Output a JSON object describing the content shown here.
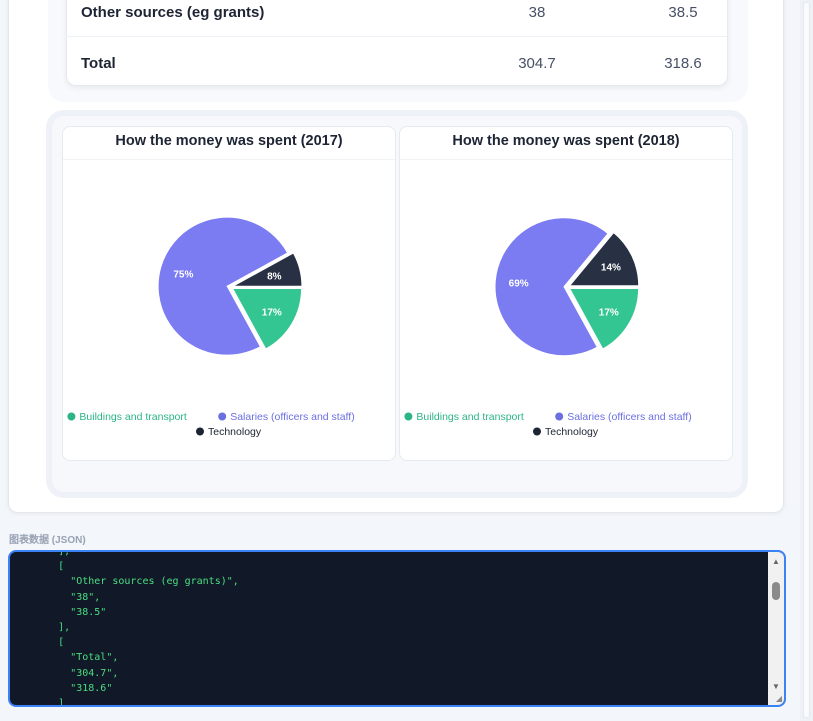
{
  "table": {
    "rows": [
      {
        "label": "Other sources (eg grants)",
        "v2017": "38",
        "v2018": "38.5"
      },
      {
        "label": "Total",
        "v2017": "304.7",
        "v2018": "318.6"
      }
    ]
  },
  "chart_data": [
    {
      "type": "pie",
      "title": "How the money was spent (2017)",
      "categories": [
        "Buildings and transport",
        "Salaries (officers and staff)",
        "Technology"
      ],
      "values": [
        17,
        75,
        8
      ],
      "labels": [
        "17%",
        "75%",
        "8%"
      ],
      "colors": [
        "#34c692",
        "#7b7bf2",
        "#283144"
      ],
      "legend_position": "bottom"
    },
    {
      "type": "pie",
      "title": "How the money was spent (2018)",
      "categories": [
        "Buildings and transport",
        "Salaries (officers and staff)",
        "Technology"
      ],
      "values": [
        17,
        69,
        14
      ],
      "labels": [
        "17%",
        "69%",
        "14%"
      ],
      "colors": [
        "#34c692",
        "#7b7bf2",
        "#283144"
      ],
      "legend_position": "bottom"
    }
  ],
  "legend": {
    "items": [
      {
        "label": "Buildings and transport",
        "color": "#2bb585"
      },
      {
        "label": "Salaries (officers and staff)",
        "color": "#6b6fe0"
      },
      {
        "label": "Technology",
        "color": "#1d2433"
      }
    ]
  },
  "json_panel": {
    "label": "图表数据 (JSON)",
    "lines": [
      "        ],",
      "        [",
      "          \"Other sources (eg grants)\",",
      "          \"38\",",
      "          \"38.5\"",
      "        ],",
      "        [",
      "          \"Total\",",
      "          \"304.7\",",
      "          \"318.6\"",
      "        ]"
    ]
  }
}
